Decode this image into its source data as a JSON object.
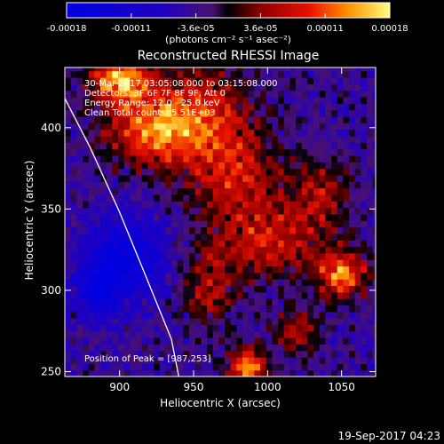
{
  "chart_data": {
    "type": "heatmap",
    "title": "Reconstructed RHESSI Image",
    "xlabel": "Heliocentric X (arcsec)",
    "ylabel": "Heliocentric Y (arcsec)",
    "xlim": [
      863,
      1073
    ],
    "ylim": [
      247,
      437
    ],
    "xticks": [
      900,
      950,
      1000,
      1050
    ],
    "yticks": [
      250,
      300,
      350,
      400
    ],
    "colorbar": {
      "label": "(photons cm⁻² s⁻¹ asec⁻²)",
      "range": [
        -0.00018,
        0.00018
      ],
      "ticks": [
        "-0.00018",
        "-0.00011",
        "-3.6e-05",
        "3.6e-05",
        "0.00011",
        "0.00018"
      ]
    },
    "annotations": [
      "30-Mar-2017 03:05:08.000 to 03:15:08.000",
      "Detectors: 3F 6F 7F 8F 9F, Att 0",
      "Energy Range: 12.0 - 25.0 keV",
      "Clean    Total counts: 5.51E+03"
    ],
    "peak_label": "Position of Peak = [987,253]",
    "peak": [
      987,
      253
    ],
    "limb": [
      [
        863,
        418
      ],
      [
        880,
        388
      ],
      [
        900,
        348
      ],
      [
        918,
        308
      ],
      [
        935,
        270
      ],
      [
        940,
        247
      ]
    ],
    "sources": [
      {
        "x": 900,
        "y": 430,
        "amp": 0.00018,
        "sx": 14,
        "sy": 10
      },
      {
        "x": 920,
        "y": 400,
        "amp": 0.00013,
        "sx": 22,
        "sy": 16
      },
      {
        "x": 955,
        "y": 405,
        "amp": 0.00012,
        "sx": 25,
        "sy": 22
      },
      {
        "x": 980,
        "y": 370,
        "amp": 0.0001,
        "sx": 20,
        "sy": 18
      },
      {
        "x": 1000,
        "y": 330,
        "amp": 0.00011,
        "sx": 28,
        "sy": 16
      },
      {
        "x": 1050,
        "y": 310,
        "amp": 0.00016,
        "sx": 12,
        "sy": 10
      },
      {
        "x": 1035,
        "y": 360,
        "amp": 9e-05,
        "sx": 14,
        "sy": 14
      },
      {
        "x": 987,
        "y": 253,
        "amp": 0.00018,
        "sx": 9,
        "sy": 8
      },
      {
        "x": 1020,
        "y": 275,
        "amp": 0.0001,
        "sx": 10,
        "sy": 9
      },
      {
        "x": 960,
        "y": 300,
        "amp": 9e-05,
        "sx": 12,
        "sy": 16
      },
      {
        "x": 905,
        "y": 320,
        "amp": -0.00013,
        "sx": 18,
        "sy": 18
      },
      {
        "x": 885,
        "y": 300,
        "amp": -0.00012,
        "sx": 10,
        "sy": 12
      }
    ]
  },
  "footer": {
    "timestamp": "19-Sep-2017 04:23"
  }
}
